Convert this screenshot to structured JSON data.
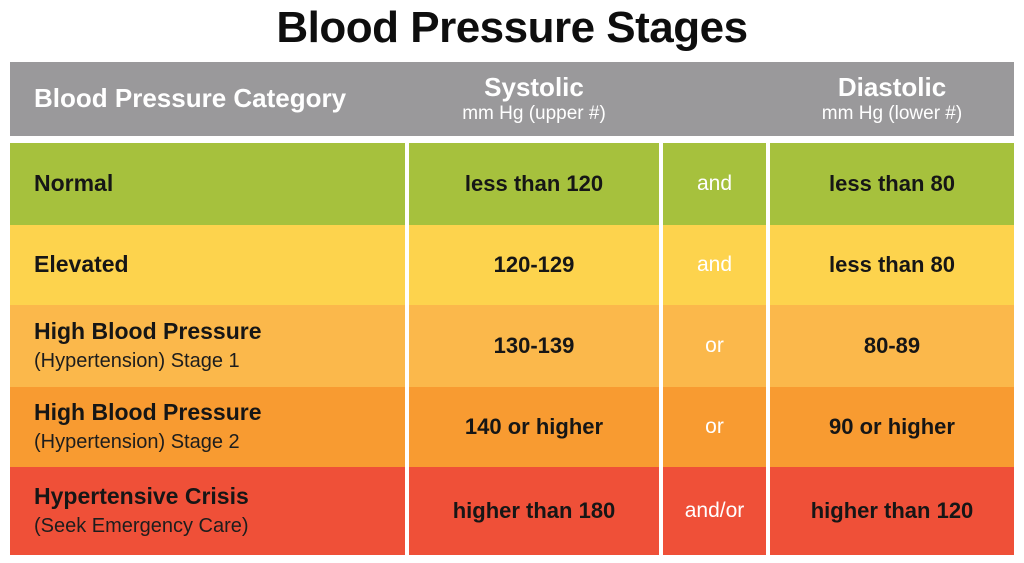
{
  "title": "Blood Pressure Stages",
  "colors": {
    "header_bg": "#9A999B",
    "header_text": "#FFFFFF",
    "text_dark": "#161616",
    "connector_text": "#FFFFFF",
    "row_normal": "#A6C13D",
    "row_elevated": "#FDD34D",
    "row_stage1": "#FBB84B",
    "row_stage2": "#F89B31",
    "row_crisis": "#EF5038"
  },
  "chart_data": {
    "type": "table",
    "title": "Blood Pressure Stages",
    "columns": [
      {
        "label": "Blood Pressure Category",
        "sub": ""
      },
      {
        "label": "Systolic",
        "sub": "mm Hg (upper #)"
      },
      {
        "label": "",
        "sub": ""
      },
      {
        "label": "Diastolic",
        "sub": "mm Hg (lower #)"
      }
    ],
    "rows": [
      {
        "category": "Normal",
        "subcategory": "",
        "systolic": "less than 120",
        "connector": "and",
        "diastolic": "less than 80",
        "color": "#A6C13D"
      },
      {
        "category": "Elevated",
        "subcategory": "",
        "systolic": "120-129",
        "connector": "and",
        "diastolic": "less than 80",
        "color": "#FDD34D"
      },
      {
        "category": "High Blood Pressure",
        "subcategory": "(Hypertension) Stage 1",
        "systolic": "130-139",
        "connector": "or",
        "diastolic": "80-89",
        "color": "#FBB84B"
      },
      {
        "category": "High Blood Pressure",
        "subcategory": "(Hypertension) Stage 2",
        "systolic": "140 or higher",
        "connector": "or",
        "diastolic": "90 or higher",
        "color": "#F89B31"
      },
      {
        "category": "Hypertensive Crisis",
        "subcategory": "(Seek Emergency Care)",
        "systolic": "higher than 180",
        "connector": "and/or",
        "diastolic": "higher than 120",
        "color": "#EF5038"
      }
    ]
  }
}
